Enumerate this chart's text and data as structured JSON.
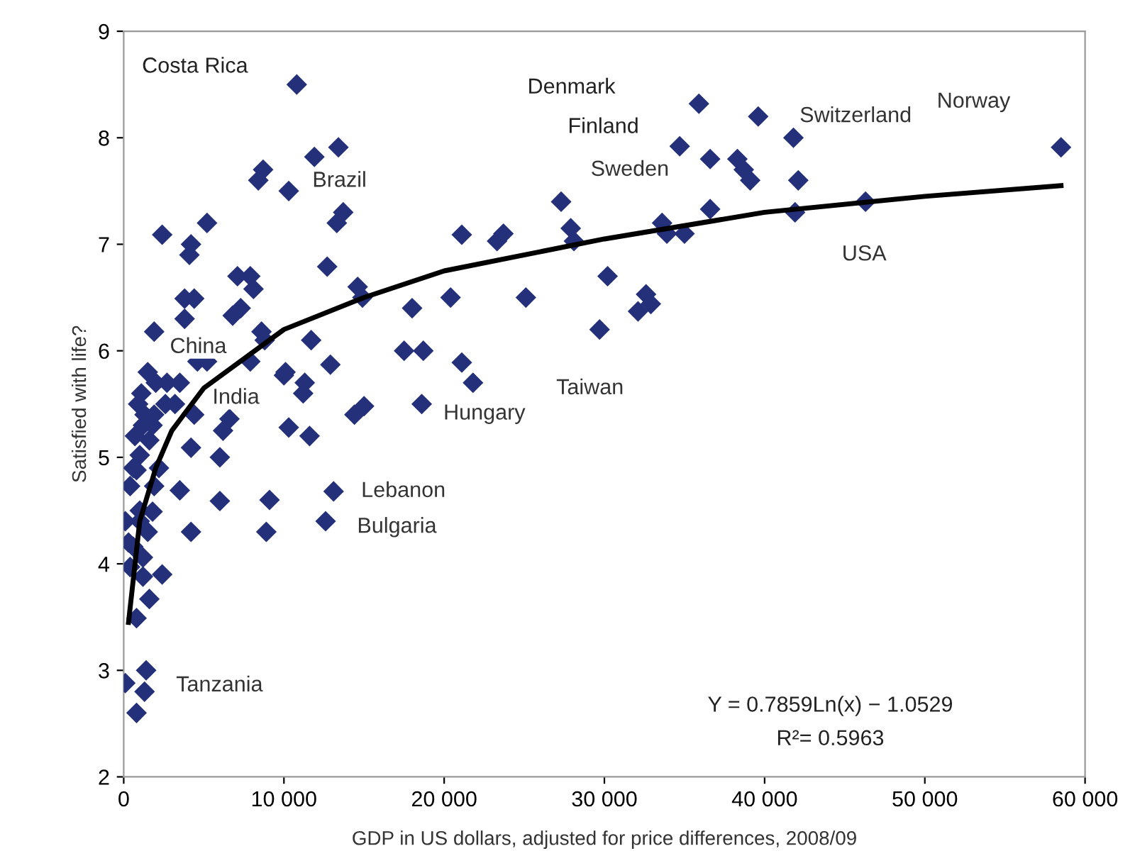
{
  "chart_data": {
    "type": "scatter",
    "xlabel": "GDP in US dollars, adjusted for price differences, 2008/09",
    "ylabel": "Satisfied with life?",
    "xlim": [
      0,
      60000
    ],
    "ylim": [
      2,
      9
    ],
    "xticks": [
      0,
      {
        "value": 10000,
        "label": "10 000"
      },
      {
        "value": 20000,
        "label": "20 000"
      },
      {
        "value": 30000,
        "label": "30 000"
      },
      {
        "value": 40000,
        "label": "40 000"
      },
      {
        "value": 50000,
        "label": "50 000"
      },
      {
        "value": 60000,
        "label": "60 000"
      }
    ],
    "yticks": [
      2,
      3,
      4,
      5,
      6,
      7,
      8,
      9
    ],
    "grid": false,
    "legend": false,
    "marker": "diamond",
    "series": [
      {
        "color": "#24307a",
        "x": [
          10800,
          100,
          1400,
          1300,
          800,
          58500,
          39600,
          35900,
          34700,
          36600,
          38300,
          38700,
          39100,
          41800,
          42100,
          27300,
          46300,
          41900,
          36600,
          33600,
          33900,
          35000,
          27900,
          28100,
          30200,
          32600,
          32900,
          32100,
          29700,
          13400,
          11900,
          8700,
          8400,
          10300,
          13700,
          13300,
          12700,
          21100,
          23300,
          23700,
          14600,
          14900,
          18000,
          20400,
          25100,
          11700,
          12900,
          17500,
          18700,
          21100,
          21800,
          10000,
          11300,
          11200,
          8800,
          15000,
          14400,
          18600,
          10300,
          11600,
          13100,
          12600,
          9100,
          8900,
          2400,
          5200,
          4200,
          4100,
          7100,
          7900,
          8100,
          3800,
          4400,
          7300,
          6800,
          3800,
          1900,
          8600,
          4600,
          5200,
          7900,
          2700,
          3500,
          10100,
          2600,
          1900,
          3200,
          4400,
          6600,
          6200,
          1200,
          1600,
          1000,
          4200,
          6000,
          800,
          1900,
          400,
          3500,
          6000,
          100,
          1000,
          1800,
          4200,
          600,
          400,
          1200,
          2400,
          1200,
          1600,
          800,
          900,
          1100,
          1500,
          700,
          1300,
          2000,
          600,
          1000,
          300,
          1500,
          2200,
          1800
        ],
        "values": [
          8.5,
          2.88,
          3.0,
          2.8,
          2.6,
          7.91,
          8.2,
          8.32,
          7.92,
          7.8,
          7.8,
          7.7,
          7.6,
          8.0,
          7.6,
          7.4,
          7.4,
          7.3,
          7.33,
          7.2,
          7.1,
          7.1,
          7.15,
          7.03,
          6.7,
          6.53,
          6.44,
          6.37,
          6.2,
          7.91,
          7.82,
          7.7,
          7.6,
          7.5,
          7.3,
          7.2,
          6.79,
          7.09,
          7.03,
          7.1,
          6.6,
          6.5,
          6.4,
          6.5,
          6.5,
          6.1,
          5.87,
          6.0,
          6.0,
          5.89,
          5.7,
          5.77,
          5.7,
          5.6,
          6.1,
          5.48,
          5.4,
          5.5,
          5.28,
          5.2,
          4.68,
          4.4,
          4.6,
          4.3,
          7.09,
          7.2,
          7.0,
          6.9,
          6.7,
          6.7,
          6.58,
          6.49,
          6.49,
          6.4,
          6.33,
          6.3,
          6.18,
          6.18,
          5.9,
          5.9,
          5.9,
          5.7,
          5.7,
          5.8,
          5.5,
          5.4,
          5.5,
          5.4,
          5.36,
          5.25,
          5.3,
          5.16,
          5.02,
          5.09,
          5.0,
          4.88,
          4.73,
          4.73,
          4.69,
          4.59,
          4.4,
          4.4,
          4.49,
          4.3,
          4.16,
          3.97,
          4.06,
          3.9,
          3.88,
          3.67,
          3.49,
          5.5,
          5.6,
          5.8,
          5.2,
          5.4,
          5.7,
          4.9,
          4.5,
          4.2,
          4.3,
          4.9,
          5.3
        ]
      },
      {
        "type": "line",
        "color": "#000000",
        "marker": "none",
        "line_style": "solid",
        "x": [
          300,
          1000,
          2000,
          3000,
          5000,
          10000,
          15000,
          20000,
          30000,
          40000,
          50000,
          58500
        ],
        "values": [
          3.45,
          4.4,
          4.9,
          5.25,
          5.65,
          6.2,
          6.5,
          6.75,
          7.05,
          7.3,
          7.45,
          7.55
        ]
      }
    ],
    "annotations": [
      {
        "text": "Brazil",
        "x": 10300,
        "y": 7.5
      },
      {
        "text": "Switzerland",
        "x": 39600,
        "y": 8.2
      },
      {
        "text": "Norway",
        "x": 58500,
        "y": 7.91
      },
      {
        "text": "Sweden",
        "x": 27300,
        "y": 7.4
      },
      {
        "text": "USA",
        "x": 46300,
        "y": 7.4
      },
      {
        "text": "China",
        "x": 1900,
        "y": 6.18
      },
      {
        "text": "India",
        "x": 3200,
        "y": 5.5
      },
      {
        "text": "Hungary",
        "x": 18600,
        "y": 5.5
      },
      {
        "text": "Taiwan",
        "x": 29700,
        "y": 6.2
      },
      {
        "text": "Lebanon",
        "x": 13100,
        "y": 4.68
      },
      {
        "text": "Bulgaria",
        "x": 12600,
        "y": 4.4
      },
      {
        "text": "Tanzania",
        "x": 1300,
        "y": 2.8
      },
      "Costa Rica",
      "Denmark",
      "Finland",
      "Y = 0.7859Ln(x) − 1.0529",
      "R²= 0.5963"
    ]
  }
}
